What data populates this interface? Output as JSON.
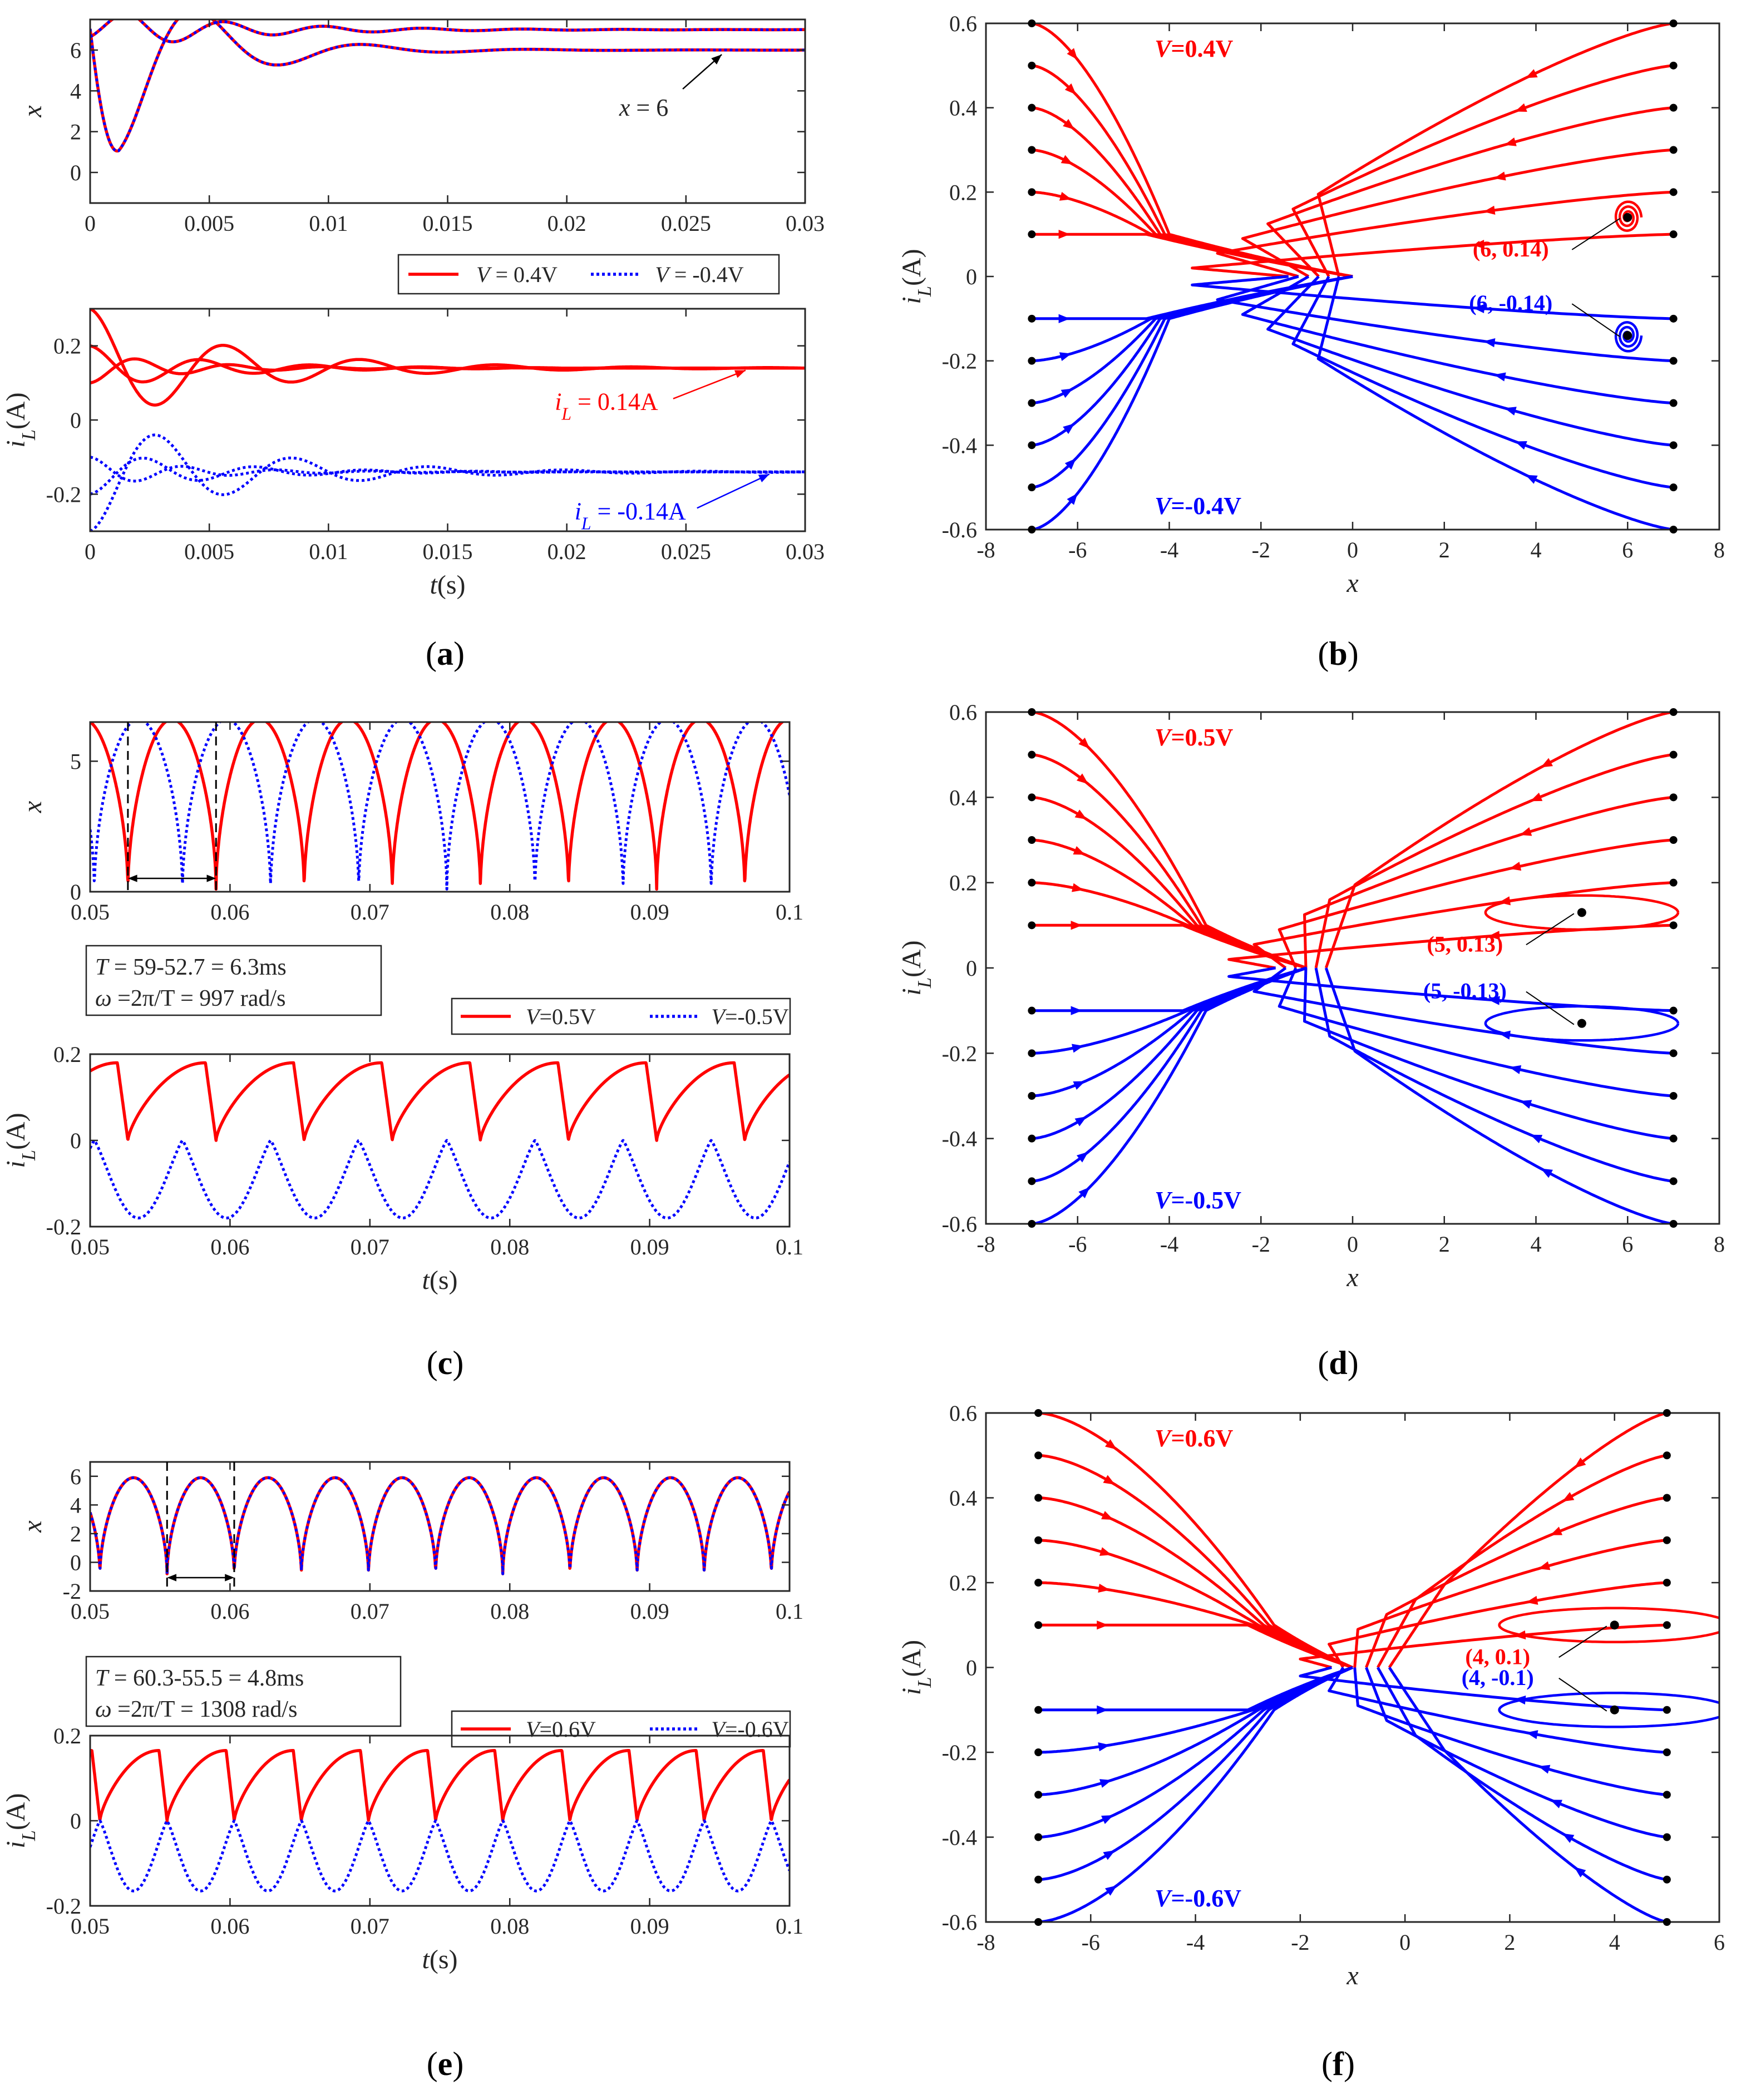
{
  "colors": {
    "pos": "#ff0000",
    "neg": "#0000ff",
    "axis": "#262626",
    "marker": "#000000"
  },
  "chart_data": [
    {
      "id": "a1",
      "type": "line",
      "panel": "a",
      "xlim": [
        0,
        0.03
      ],
      "ylim": [
        -1.5,
        7.5
      ],
      "xticks": [
        "0",
        "0.005",
        "0.01",
        "0.015",
        "0.02",
        "0.025",
        "0.03"
      ],
      "yticks": [
        "0",
        "2",
        "4",
        "6"
      ],
      "ylabel": "x",
      "series": [
        {
          "name": "V = 0.4V",
          "style": "solid",
          "traces": [
            {
              "x0": 6.0,
              "amp": 6.9,
              "decay": 280,
              "omega": 900,
              "phase": 3.3
            },
            {
              "x0": 7.0,
              "amp": 1.4,
              "decay": 200,
              "omega": 1500,
              "phase": 1.57
            }
          ]
        },
        {
          "name": "V = -0.4V",
          "style": "dotted",
          "traces": [
            {
              "x0": 6.0,
              "amp": 6.9,
              "decay": 280,
              "omega": 900,
              "phase": 3.3
            },
            {
              "x0": 7.0,
              "amp": 1.4,
              "decay": 200,
              "omega": 1500,
              "phase": 1.57
            }
          ]
        }
      ],
      "annotations": [
        {
          "text": "x = 6",
          "at": [
            0.0265,
            6.0
          ]
        }
      ],
      "legend": {
        "position": "below",
        "entries": [
          {
            "label": "V = 0.4V",
            "style": "solid"
          },
          {
            "label": "V = -0.4V",
            "style": "dotted"
          }
        ]
      }
    },
    {
      "id": "a2",
      "type": "line",
      "panel": "a",
      "xlim": [
        0,
        0.03
      ],
      "ylim": [
        -0.3,
        0.3
      ],
      "xticks": [
        "0",
        "0.005",
        "0.01",
        "0.015",
        "0.02",
        "0.025",
        "0.03"
      ],
      "yticks": [
        "-0.2",
        "0",
        "0.2"
      ],
      "xlabel": "t(s)",
      "ylabel": "iL(A)",
      "series": [
        {
          "name": "V = 0.4V",
          "style": "solid",
          "steady": 0.14,
          "starts": [
            0.3,
            0.2,
            0.1
          ]
        },
        {
          "name": "V = -0.4V",
          "style": "dotted",
          "steady": -0.14,
          "starts": [
            -0.3,
            -0.2,
            -0.1
          ]
        }
      ],
      "annotations": [
        {
          "text": "iL = 0.14A",
          "at": [
            0.0275,
            0.14
          ]
        },
        {
          "text": "iL = -0.14A",
          "at": [
            0.0285,
            -0.14
          ]
        }
      ]
    },
    {
      "id": "b",
      "type": "phase-portrait",
      "panel": "b",
      "xlim": [
        -8,
        8
      ],
      "ylim": [
        -0.6,
        0.6
      ],
      "xticks": [
        "-8",
        "-6",
        "-4",
        "-2",
        "0",
        "2",
        "4",
        "6",
        "8"
      ],
      "yticks": [
        "-0.6",
        "-0.4",
        "-0.2",
        "0",
        "0.2",
        "0.4",
        "0.6"
      ],
      "xlabel": "x",
      "ylabel": "iL(A)",
      "x_left": -7,
      "x_right": 7,
      "merge_x": -4.0,
      "apex_x": 0,
      "loop_x": 6,
      "equilibria": [
        {
          "x": 6,
          "y": 0.14,
          "label": "(6, 0.14)",
          "kind": "focus"
        },
        {
          "x": 6,
          "y": -0.14,
          "label": "(6, -0.14)",
          "kind": "focus"
        }
      ],
      "voltages": [
        {
          "label": "V=0.4V",
          "sign": "pos"
        },
        {
          "label": "V=-0.4V",
          "sign": "neg"
        }
      ]
    },
    {
      "id": "c1",
      "type": "line",
      "panel": "c",
      "xlim": [
        0.05,
        0.1
      ],
      "ylim": [
        0,
        6.5
      ],
      "xticks": [
        "0.05",
        "0.06",
        "0.07",
        "0.08",
        "0.09",
        "0.1"
      ],
      "yticks": [
        "0",
        "5"
      ],
      "ylabel": "x",
      "period_ms": 6.3,
      "series": [
        {
          "name": "V=0.5V",
          "style": "solid",
          "first_min": 0.0527,
          "peak": 6.6
        },
        {
          "name": "V=-0.5V",
          "style": "dotted",
          "first_min": 0.0503,
          "peak": 6.6
        }
      ],
      "markers": [
        0.0527,
        0.059
      ],
      "info": [
        "T = 59-52.7 = 6.3ms",
        "ω =2π/T = 997 rad/s"
      ],
      "legend": {
        "position": "below-right",
        "entries": [
          {
            "label": "V=0.5V",
            "style": "solid"
          },
          {
            "label": "V=-0.5V",
            "style": "dotted"
          }
        ]
      }
    },
    {
      "id": "c2",
      "type": "line",
      "panel": "c",
      "xlim": [
        0.05,
        0.1
      ],
      "ylim": [
        -0.2,
        0.2
      ],
      "xticks": [
        "0.05",
        "0.06",
        "0.07",
        "0.08",
        "0.09",
        "0.1"
      ],
      "yticks": [
        "-0.2",
        "0",
        "0.2"
      ],
      "xlabel": "t(s)",
      "ylabel": "iL(A)",
      "series": [
        {
          "name": "V=0.5V",
          "style": "solid",
          "min": 0.0,
          "max": 0.18,
          "first_min": 0.0527
        },
        {
          "name": "V=-0.5V",
          "style": "dotted",
          "min": -0.18,
          "max": 0.0,
          "first_min": 0.0503
        }
      ]
    },
    {
      "id": "d",
      "type": "phase-portrait",
      "panel": "d",
      "xlim": [
        -8,
        8
      ],
      "ylim": [
        -0.6,
        0.6
      ],
      "xticks": [
        "-8",
        "-6",
        "-4",
        "-2",
        "0",
        "2",
        "4",
        "6",
        "8"
      ],
      "yticks": [
        "-0.6",
        "-0.4",
        "-0.2",
        "0",
        "0.2",
        "0.4",
        "0.6"
      ],
      "xlabel": "x",
      "ylabel": "iL(A)",
      "x_left": -7,
      "x_right": 7,
      "merge_x": -3.2,
      "apex_x": -1,
      "loop_x": 6.8,
      "equilibria": [
        {
          "x": 5,
          "y": 0.13,
          "label": "(5, 0.13)",
          "kind": "cycle"
        },
        {
          "x": 5,
          "y": -0.13,
          "label": "(5, -0.13)",
          "kind": "cycle"
        }
      ],
      "voltages": [
        {
          "label": "V=0.5V",
          "sign": "pos"
        },
        {
          "label": "V=-0.5V",
          "sign": "neg"
        }
      ]
    },
    {
      "id": "e1",
      "type": "line",
      "panel": "e",
      "xlim": [
        0.05,
        0.1
      ],
      "ylim": [
        -2,
        7
      ],
      "xticks": [
        "0.05",
        "0.06",
        "0.07",
        "0.08",
        "0.09",
        "0.1"
      ],
      "yticks": [
        "-2",
        "0",
        "2",
        "4",
        "6"
      ],
      "ylabel": "x",
      "period_ms": 4.8,
      "series": [
        {
          "name": "V=0.6V",
          "style": "solid",
          "first_min": 0.0555,
          "peak": 5.9,
          "trough": -0.8
        },
        {
          "name": "V=-0.6V",
          "style": "dotted",
          "first_min": 0.0555,
          "peak": 5.9,
          "trough": -0.8
        }
      ],
      "markers": [
        0.0555,
        0.0603
      ],
      "info": [
        "T = 60.3-55.5 = 4.8ms",
        "ω =2π/T = 1308 rad/s"
      ],
      "legend": {
        "position": "below-right",
        "entries": [
          {
            "label": "V=0.6V",
            "style": "solid"
          },
          {
            "label": "V=-0.6V",
            "style": "dotted"
          }
        ]
      }
    },
    {
      "id": "e2",
      "type": "line",
      "panel": "e",
      "xlim": [
        0.05,
        0.1
      ],
      "ylim": [
        -0.2,
        0.2
      ],
      "xticks": [
        "0.05",
        "0.06",
        "0.07",
        "0.08",
        "0.09",
        "0.1"
      ],
      "yticks": [
        "-0.2",
        "0",
        "0.2"
      ],
      "xlabel": "t(s)",
      "ylabel": "iL(A)",
      "series": [
        {
          "name": "V=0.6V",
          "style": "solid",
          "min": 0.0,
          "max": 0.165,
          "first_min": 0.0555
        },
        {
          "name": "V=-0.6V",
          "style": "dotted",
          "min": -0.165,
          "max": 0.0,
          "first_min": 0.0555
        }
      ]
    },
    {
      "id": "f",
      "type": "phase-portrait",
      "panel": "f",
      "xlim": [
        -8,
        6
      ],
      "ylim": [
        -0.6,
        0.6
      ],
      "xticks": [
        "-8",
        "-6",
        "-4",
        "-2",
        "0",
        "2",
        "4",
        "6"
      ],
      "yticks": [
        "-0.6",
        "-0.4",
        "-0.2",
        "0",
        "0.2",
        "0.4",
        "0.6"
      ],
      "xlabel": "x",
      "ylabel": "iL(A)",
      "x_left": -7,
      "x_right": 5,
      "merge_x": -2.5,
      "apex_x": -1,
      "loop_x": 5.9,
      "equilibria": [
        {
          "x": 4,
          "y": 0.1,
          "label": "(4, 0.1)",
          "kind": "cycle"
        },
        {
          "x": 4,
          "y": -0.1,
          "label": "(4, -0.1)",
          "kind": "cycle"
        }
      ],
      "voltages": [
        {
          "label": "V=0.6V",
          "sign": "pos"
        },
        {
          "label": "V=-0.6V",
          "sign": "neg"
        }
      ]
    }
  ],
  "panel_labels": [
    "(a)",
    "(b)",
    "(c)",
    "(d)",
    "(e)",
    "(f)"
  ]
}
